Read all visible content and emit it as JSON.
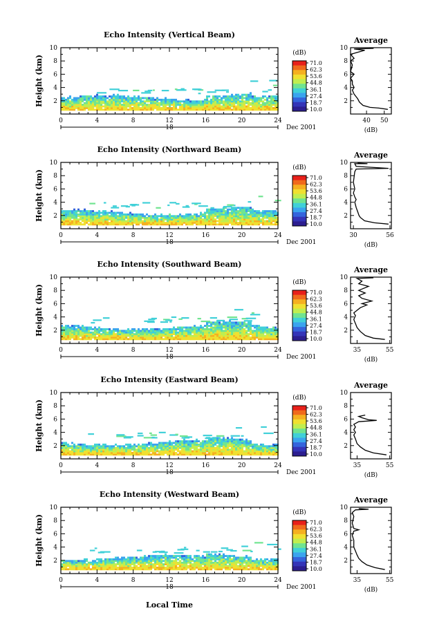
{
  "figure": {
    "xlabel": "Local Time",
    "date_label": "Dec 2001",
    "day_label": "18",
    "avg_title": "Average",
    "avg_unit": "(dB)",
    "colorbar_unit": "(dB)",
    "colorbar_ticks": [
      "71.0",
      "62.3",
      "53.6",
      "44.8",
      "36.1",
      "27.4",
      "18.7",
      "10.0"
    ],
    "colorbar_colors": [
      "#e8201a",
      "#f06a1c",
      "#f5b020",
      "#f0e030",
      "#c0ee50",
      "#70e490",
      "#40d0d8",
      "#3aa4ee",
      "#3464dc",
      "#3434b8",
      "#2c1e90"
    ]
  },
  "chart_data": [
    {
      "type": "heatmap",
      "title": "Echo Intensity (Vertical Beam)",
      "ylabel": "Height (km)",
      "xlim": [
        0,
        24
      ],
      "ylim": [
        0,
        10
      ],
      "x_ticks": [
        0,
        4,
        8,
        12,
        16,
        20,
        24
      ],
      "y_ticks": [
        2,
        4,
        6,
        8,
        10
      ],
      "colorbar_range": [
        10.0,
        71.0
      ],
      "profile": {
        "xlabel": "(dB)",
        "x_ticks": [
          40,
          50
        ],
        "xlim": [
          31,
          54
        ],
        "points": [
          [
            52,
            0.7
          ],
          [
            47,
            0.9
          ],
          [
            42,
            1.0
          ],
          [
            38,
            1.3
          ],
          [
            36,
            1.8
          ],
          [
            35,
            2.3
          ],
          [
            33,
            3.0
          ],
          [
            32,
            3.6
          ],
          [
            33,
            4.0
          ],
          [
            32,
            4.5
          ],
          [
            32,
            5.0
          ],
          [
            31,
            5.4
          ],
          [
            33,
            6.0
          ],
          [
            31,
            6.4
          ],
          [
            32,
            7.4
          ],
          [
            31,
            8.0
          ],
          [
            33,
            8.4
          ],
          [
            31,
            9.0
          ],
          [
            39,
            9.6
          ],
          [
            33,
            9.8
          ],
          [
            44,
            9.9
          ]
        ]
      }
    },
    {
      "type": "heatmap",
      "title": "Echo Intensity (Northward Beam)",
      "ylabel": "Height (km)",
      "xlim": [
        0,
        24
      ],
      "ylim": [
        0,
        10
      ],
      "x_ticks": [
        0,
        4,
        8,
        12,
        16,
        20,
        24
      ],
      "y_ticks": [
        2,
        4,
        6,
        8,
        10
      ],
      "colorbar_range": [
        10.0,
        71.0
      ],
      "profile": {
        "xlabel": "(dB)",
        "x_ticks": [
          30,
          56
        ],
        "xlim": [
          28,
          57
        ],
        "points": [
          [
            55,
            0.7
          ],
          [
            45,
            0.9
          ],
          [
            38,
            1.2
          ],
          [
            35,
            1.7
          ],
          [
            34,
            2.0
          ],
          [
            33,
            2.6
          ],
          [
            32,
            3.2
          ],
          [
            31,
            4.0
          ],
          [
            32,
            4.4
          ],
          [
            31,
            4.8
          ],
          [
            30,
            5.4
          ],
          [
            31,
            6.0
          ],
          [
            30,
            7.0
          ],
          [
            31,
            8.6
          ],
          [
            32,
            9.0
          ],
          [
            55,
            9.1
          ],
          [
            32,
            9.4
          ],
          [
            31,
            9.8
          ],
          [
            40,
            9.8
          ],
          [
            33,
            9.9
          ]
        ]
      }
    },
    {
      "type": "heatmap",
      "title": "Echo Intensity (Southward Beam)",
      "ylabel": "Height (km)",
      "xlim": [
        0,
        24
      ],
      "ylim": [
        0,
        10
      ],
      "x_ticks": [
        0,
        4,
        8,
        12,
        16,
        20,
        24
      ],
      "y_ticks": [
        2,
        4,
        6,
        8,
        10
      ],
      "colorbar_range": [
        10.0,
        71.0
      ],
      "profile": {
        "xlabel": "(dB)",
        "x_ticks": [
          35,
          55
        ],
        "xlim": [
          31,
          56
        ],
        "points": [
          [
            52,
            0.6
          ],
          [
            45,
            0.8
          ],
          [
            40,
            1.2
          ],
          [
            37,
            1.8
          ],
          [
            35,
            2.4
          ],
          [
            34,
            3.0
          ],
          [
            33,
            3.6
          ],
          [
            34,
            4.2
          ],
          [
            33,
            4.6
          ],
          [
            35,
            5.0
          ],
          [
            37,
            5.4
          ],
          [
            41,
            5.8
          ],
          [
            38,
            6.0
          ],
          [
            44,
            6.4
          ],
          [
            38,
            6.8
          ],
          [
            36,
            7.2
          ],
          [
            40,
            7.6
          ],
          [
            36,
            8.0
          ],
          [
            42,
            8.6
          ],
          [
            36,
            9.0
          ],
          [
            38,
            9.4
          ],
          [
            35,
            9.8
          ],
          [
            45,
            9.9
          ]
        ]
      }
    },
    {
      "type": "heatmap",
      "title": "Echo Intensity (Eastward Beam)",
      "ylabel": "Height (km)",
      "xlim": [
        0,
        24
      ],
      "ylim": [
        0,
        10
      ],
      "x_ticks": [
        0,
        4,
        8,
        12,
        16,
        20,
        24
      ],
      "y_ticks": [
        2,
        4,
        6,
        8,
        10
      ],
      "colorbar_range": [
        10.0,
        71.0
      ],
      "profile": {
        "xlabel": "(dB)",
        "x_ticks": [
          35,
          55
        ],
        "xlim": [
          31,
          56
        ],
        "points": [
          [
            53,
            0.6
          ],
          [
            45,
            0.9
          ],
          [
            40,
            1.3
          ],
          [
            37,
            1.8
          ],
          [
            35,
            2.3
          ],
          [
            34,
            3.0
          ],
          [
            33,
            3.6
          ],
          [
            34,
            4.0
          ],
          [
            33,
            4.4
          ],
          [
            34,
            4.8
          ],
          [
            33,
            5.2
          ],
          [
            36,
            5.6
          ],
          [
            47,
            5.8
          ],
          [
            42,
            5.9
          ],
          [
            38,
            6.2
          ],
          [
            36,
            6.4
          ],
          [
            40,
            6.6
          ]
        ]
      }
    },
    {
      "type": "heatmap",
      "title": "Echo Intensity (Westward Beam)",
      "ylabel": "Height (km)",
      "xlim": [
        0,
        24
      ],
      "ylim": [
        0,
        10
      ],
      "x_ticks": [
        0,
        4,
        8,
        12,
        16,
        20,
        24
      ],
      "y_ticks": [
        2,
        4,
        6,
        8,
        10
      ],
      "colorbar_range": [
        10.0,
        71.0
      ],
      "profile": {
        "xlabel": "(dB)",
        "x_ticks": [
          35,
          55
        ],
        "xlim": [
          31,
          56
        ],
        "points": [
          [
            52,
            0.6
          ],
          [
            46,
            0.9
          ],
          [
            41,
            1.3
          ],
          [
            38,
            1.8
          ],
          [
            36,
            2.3
          ],
          [
            35,
            2.8
          ],
          [
            34,
            3.4
          ],
          [
            33,
            4.0
          ],
          [
            33,
            5.0
          ],
          [
            32,
            5.8
          ],
          [
            33,
            6.4
          ],
          [
            36,
            6.6
          ],
          [
            33,
            6.8
          ],
          [
            32,
            7.6
          ],
          [
            33,
            8.6
          ],
          [
            32,
            9.2
          ],
          [
            34,
            9.6
          ],
          [
            42,
            9.7
          ],
          [
            36,
            9.8
          ]
        ]
      }
    }
  ]
}
